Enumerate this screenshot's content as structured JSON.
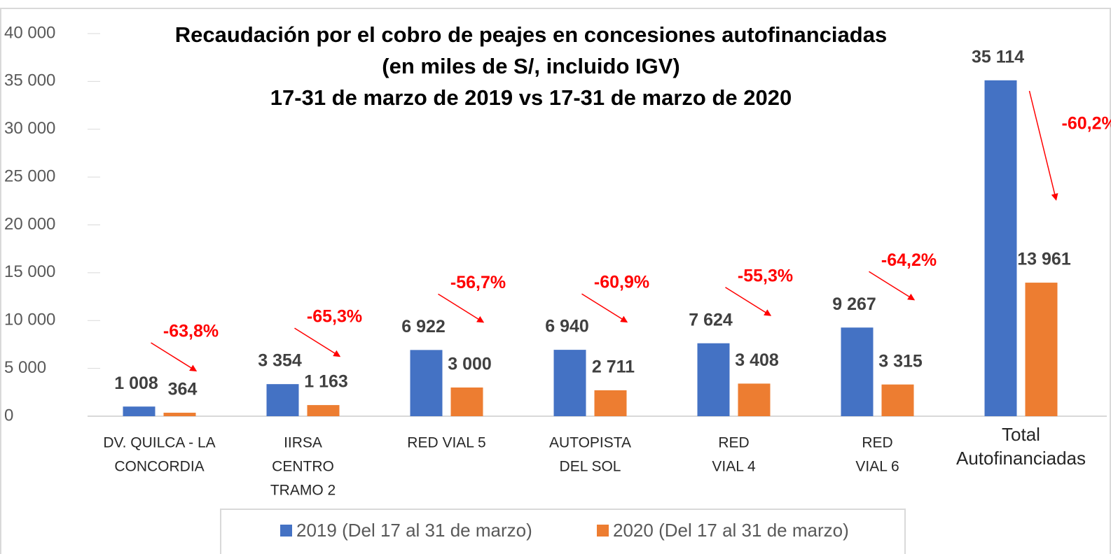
{
  "chart_data": {
    "type": "bar",
    "title": [
      "Recaudación por el cobro de peajes en concesiones autofinanciadas",
      "(en miles de S/, incluido IGV)",
      "17-31 de marzo de 2019 vs 17-31 de marzo de 2020"
    ],
    "categories": [
      [
        "DV. QUILCA - LA",
        "CONCORDIA"
      ],
      [
        "IIRSA",
        "CENTRO",
        "TRAMO 2"
      ],
      [
        "RED VIAL 5"
      ],
      [
        "AUTOPISTA",
        "DEL SOL"
      ],
      [
        "RED",
        "VIAL 4"
      ],
      [
        "RED",
        "VIAL 6"
      ],
      [
        "Total",
        "Autofinanciadas"
      ]
    ],
    "series": [
      {
        "name": "2019 (Del 17 al 31 de marzo)",
        "color": "#4472c4",
        "values": [
          1008,
          3354,
          6922,
          6940,
          7624,
          9267,
          35114
        ],
        "value_labels": [
          "1 008",
          "3 354",
          "6 922",
          "6 940",
          "7 624",
          "9 267",
          "35 114"
        ]
      },
      {
        "name": "2020 (Del 17 al 31 de marzo)",
        "color": "#ed7d31",
        "values": [
          364,
          1163,
          3000,
          2711,
          3408,
          3315,
          13961
        ],
        "value_labels": [
          "364",
          "1 163",
          "3 000",
          "2 711",
          "3 408",
          "3 315",
          "13 961"
        ]
      }
    ],
    "annotations": [
      "-63,8%",
      "-65,3%",
      "-56,7%",
      "-60,9%",
      "-55,3%",
      "-64,2%",
      "-60,2%"
    ],
    "annotation_color": "#ff0000",
    "ylim": [
      0,
      40000
    ],
    "yticks": [
      0,
      {
        "value": 5000,
        "label": "5 000"
      },
      {
        "value": 10000,
        "label": "10 000"
      },
      {
        "value": 15000,
        "label": "15 000"
      },
      {
        "value": 20000,
        "label": "20 000"
      },
      {
        "value": 25000,
        "label": "25 000"
      },
      {
        "value": 30000,
        "label": "30 000"
      },
      {
        "value": 35000,
        "label": "35 000"
      },
      {
        "value": 40000,
        "label": "40 000"
      }
    ],
    "grid": false,
    "legend": "bottom"
  }
}
